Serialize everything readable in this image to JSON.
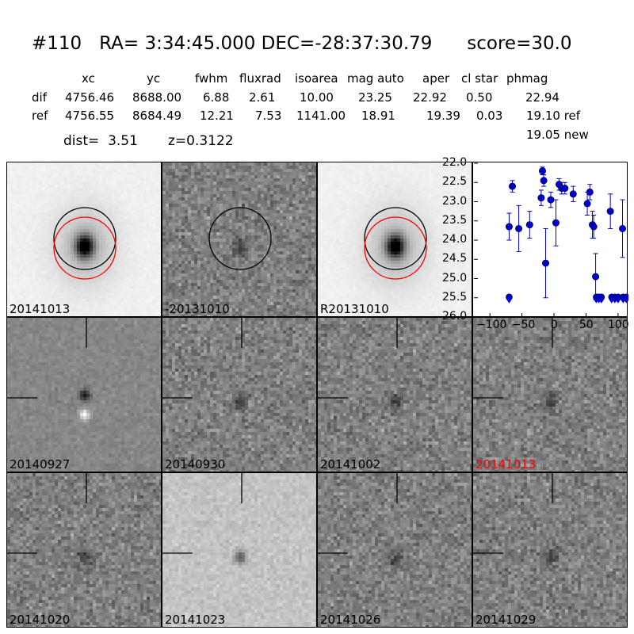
{
  "title": "#110   RA= 3:34:45.000 DEC=-28:37:30.79      score=30.0",
  "table": {
    "headers": [
      "xc",
      "yc",
      "fwhm",
      "fluxrad",
      "isoarea",
      "mag auto",
      "aper",
      "cl star",
      "phmag"
    ],
    "rows": [
      {
        "label": "dif",
        "values": [
          "4756.46",
          "8688.00",
          "6.88",
          "2.61",
          "10.00",
          "23.25",
          "22.92",
          "0.50",
          "22.94"
        ]
      },
      {
        "label": "ref",
        "values": [
          "4756.55",
          "8684.49",
          "12.21",
          "7.53",
          "1141.00",
          "18.91",
          "19.39",
          "0.03",
          "19.10 ref"
        ]
      }
    ],
    "extra": "19.05 new"
  },
  "dist_text": "dist=  3.51",
  "z_text": "z=0.3122",
  "panels": [
    {
      "label": "20141013",
      "style": "galaxy",
      "label_color": "#000000"
    },
    {
      "label": "-20131010",
      "style": "noise",
      "label_color": "#000000"
    },
    {
      "label": "R20131010",
      "style": "galaxy",
      "label_color": "#000000"
    },
    {
      "label": "20140927",
      "style": "dark",
      "label_color": "#000000"
    },
    {
      "label": "20140930",
      "style": "noise",
      "label_color": "#000000"
    },
    {
      "label": "20141002",
      "style": "noise",
      "label_color": "#000000"
    },
    {
      "label": "20141013",
      "style": "noise",
      "label_color": "#ff0000"
    },
    {
      "label": "20141020",
      "style": "noise",
      "label_color": "#000000"
    },
    {
      "label": "20141023",
      "style": "light",
      "label_color": "#000000"
    },
    {
      "label": "20141026",
      "style": "noise",
      "label_color": "#000000"
    },
    {
      "label": "20141029",
      "style": "noise",
      "label_color": "#000000"
    }
  ],
  "chart_data": {
    "type": "scatter",
    "ylim": [
      26.0,
      22.0
    ],
    "xlim": [
      -125,
      115
    ],
    "y_ticks": [
      "22.0",
      "22.5",
      "23.0",
      "23.5",
      "24.0",
      "24.5",
      "25.0",
      "25.5",
      "26.0"
    ],
    "x_ticks": [
      "−100",
      "−50",
      "0",
      "50",
      "100"
    ],
    "x_tick_values": [
      -100,
      -50,
      0,
      50,
      100
    ],
    "y_tick_values": [
      22.0,
      22.5,
      23.0,
      23.5,
      24.0,
      24.5,
      25.0,
      25.5,
      26.0
    ],
    "color": "#0000cc",
    "points": [
      {
        "x": -70,
        "y": 23.65,
        "err": 0.35
      },
      {
        "x": -65,
        "y": 22.6,
        "err": 0.15
      },
      {
        "x": -55,
        "y": 23.7,
        "err": 0.6
      },
      {
        "x": -38,
        "y": 23.6,
        "err": 0.35
      },
      {
        "x": -20,
        "y": 22.9,
        "err": 0.2
      },
      {
        "x": -18,
        "y": 22.2,
        "err": 0.1
      },
      {
        "x": -16,
        "y": 22.45,
        "err": 0.15
      },
      {
        "x": -13,
        "y": 24.6,
        "err": 0.9
      },
      {
        "x": -5,
        "y": 22.95,
        "err": 0.2
      },
      {
        "x": 3,
        "y": 23.55,
        "err": 0.6
      },
      {
        "x": 8,
        "y": 22.55,
        "err": 0.15
      },
      {
        "x": 12,
        "y": 22.65,
        "err": 0.15
      },
      {
        "x": 17,
        "y": 22.65,
        "err": 0.15
      },
      {
        "x": 30,
        "y": 22.8,
        "err": 0.2
      },
      {
        "x": 52,
        "y": 23.05,
        "err": 0.3
      },
      {
        "x": 56,
        "y": 22.75,
        "err": 0.2
      },
      {
        "x": 60,
        "y": 23.6,
        "err": 0.35
      },
      {
        "x": 62,
        "y": 23.65,
        "err": 0.3
      },
      {
        "x": 65,
        "y": 24.95,
        "err": 0.6
      },
      {
        "x": 88,
        "y": 23.25,
        "err": 0.45
      },
      {
        "x": 107,
        "y": 23.7,
        "err": 0.75
      }
    ],
    "limits": [
      {
        "x": -70,
        "y": 25.5
      },
      {
        "x": 66,
        "y": 25.5
      },
      {
        "x": 70,
        "y": 25.5
      },
      {
        "x": 74,
        "y": 25.5
      },
      {
        "x": 90,
        "y": 25.5
      },
      {
        "x": 95,
        "y": 25.5
      },
      {
        "x": 100,
        "y": 25.5
      },
      {
        "x": 108,
        "y": 25.5
      },
      {
        "x": 113,
        "y": 25.5
      }
    ]
  }
}
